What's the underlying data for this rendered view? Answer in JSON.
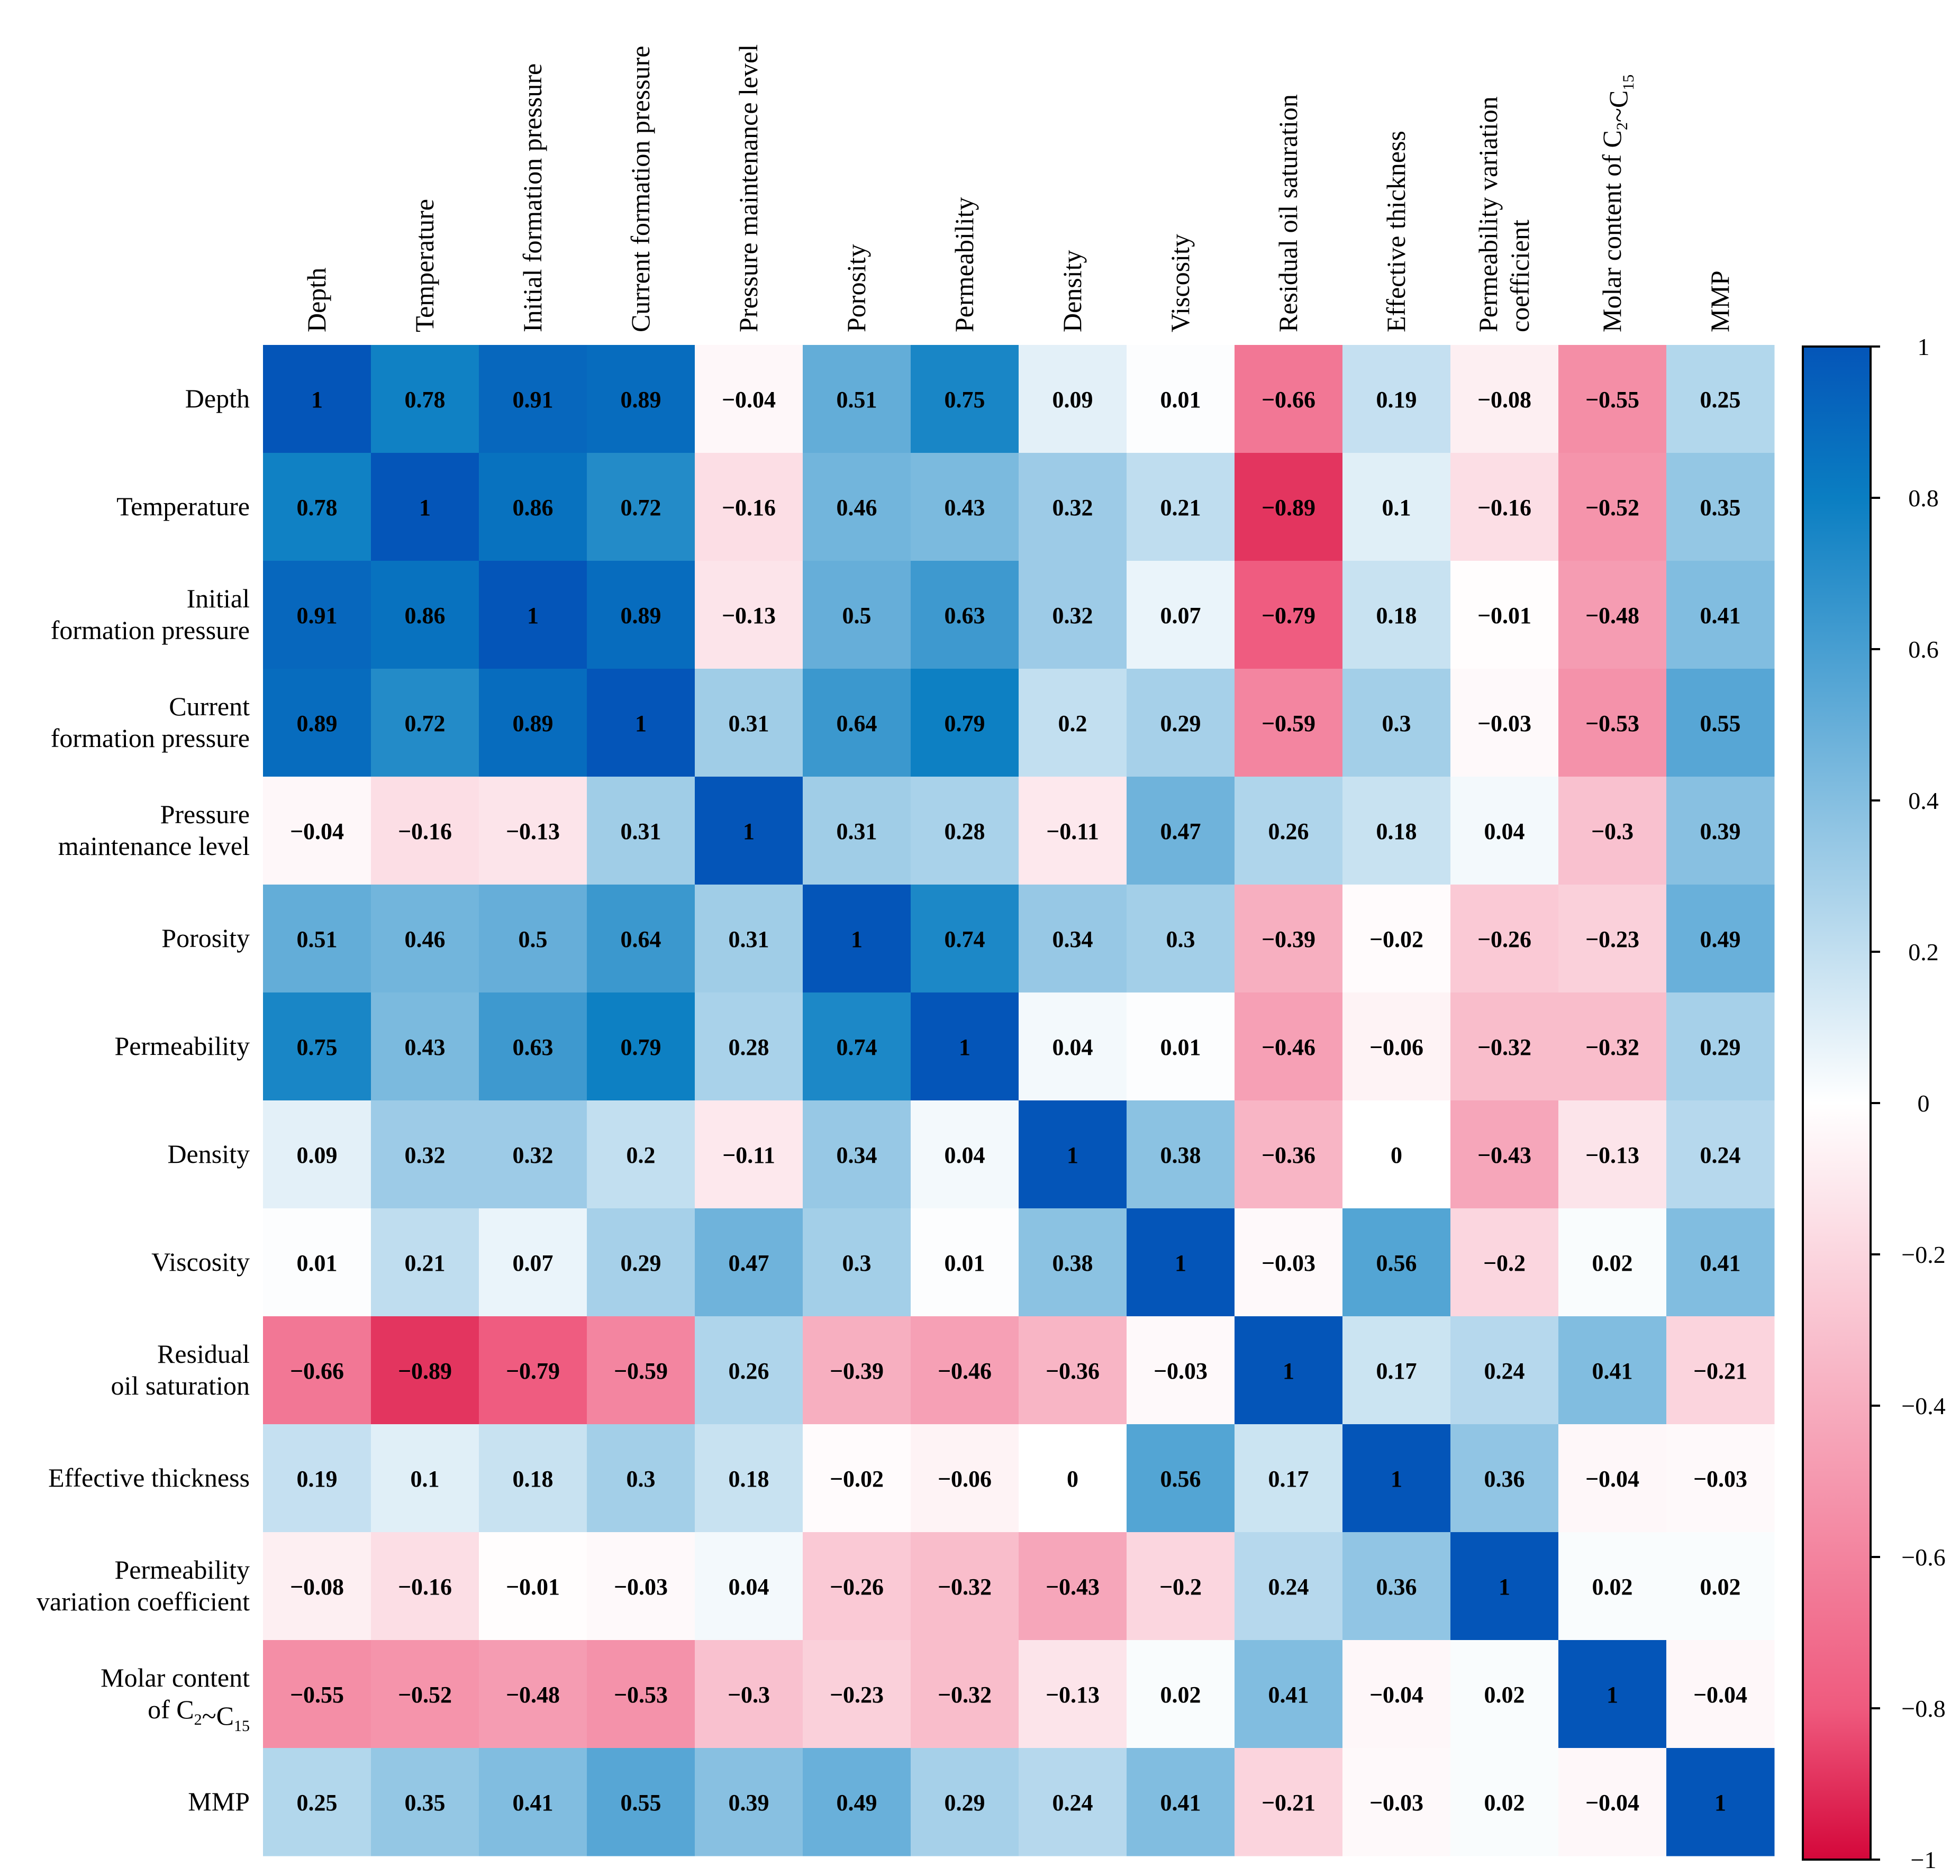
{
  "chart_data": {
    "type": "heatmap",
    "title": "",
    "columns": [
      [
        "Depth"
      ],
      [
        "Temperature"
      ],
      [
        "Initial formation pressure"
      ],
      [
        "Current formation pressure"
      ],
      [
        "Pressure maintenance level"
      ],
      [
        "Porosity"
      ],
      [
        "Permeability"
      ],
      [
        "Density"
      ],
      [
        "Viscosity"
      ],
      [
        "Residual oil saturation"
      ],
      [
        "Effective thickness"
      ],
      [
        "Permeability variation",
        "coefficient"
      ],
      [
        "Molar content of C₂~C₁₅"
      ],
      [
        "MMP"
      ]
    ],
    "rows": [
      [
        "Depth"
      ],
      [
        "Temperature"
      ],
      [
        "Initial",
        "formation pressure"
      ],
      [
        "Current",
        "formation pressure"
      ],
      [
        "Pressure",
        "maintenance level"
      ],
      [
        "Porosity"
      ],
      [
        "Permeability"
      ],
      [
        "Density"
      ],
      [
        "Viscosity"
      ],
      [
        "Residual",
        "oil saturation"
      ],
      [
        "Effective thickness"
      ],
      [
        "Permeability",
        "variation coefficient"
      ],
      [
        "Molar content",
        "of C₂~C₁₅"
      ],
      [
        "MMP"
      ]
    ],
    "values": [
      [
        1,
        0.78,
        0.91,
        0.89,
        -0.04,
        0.51,
        0.75,
        0.09,
        0.01,
        -0.66,
        0.19,
        -0.08,
        -0.55,
        0.25
      ],
      [
        0.78,
        1,
        0.86,
        0.72,
        -0.16,
        0.46,
        0.43,
        0.32,
        0.21,
        -0.89,
        0.1,
        -0.16,
        -0.52,
        0.35
      ],
      [
        0.91,
        0.86,
        1,
        0.89,
        -0.13,
        0.5,
        0.63,
        0.32,
        0.07,
        -0.79,
        0.18,
        -0.01,
        -0.48,
        0.41
      ],
      [
        0.89,
        0.72,
        0.89,
        1,
        0.31,
        0.64,
        0.79,
        0.2,
        0.29,
        -0.59,
        0.3,
        -0.03,
        -0.53,
        0.55
      ],
      [
        -0.04,
        -0.16,
        -0.13,
        0.31,
        1,
        0.31,
        0.28,
        -0.11,
        0.47,
        0.26,
        0.18,
        0.04,
        -0.3,
        0.39
      ],
      [
        0.51,
        0.46,
        0.5,
        0.64,
        0.31,
        1,
        0.74,
        0.34,
        0.3,
        -0.39,
        -0.02,
        -0.26,
        -0.23,
        0.49
      ],
      [
        0.75,
        0.43,
        0.63,
        0.79,
        0.28,
        0.74,
        1,
        0.04,
        0.01,
        -0.46,
        -0.06,
        -0.32,
        -0.32,
        0.29
      ],
      [
        0.09,
        0.32,
        0.32,
        0.2,
        -0.11,
        0.34,
        0.04,
        1,
        0.38,
        -0.36,
        0,
        -0.43,
        -0.13,
        0.24
      ],
      [
        0.01,
        0.21,
        0.07,
        0.29,
        0.47,
        0.3,
        0.01,
        0.38,
        1,
        -0.03,
        0.56,
        -0.2,
        0.02,
        0.41
      ],
      [
        -0.66,
        -0.89,
        -0.79,
        -0.59,
        0.26,
        -0.39,
        -0.46,
        -0.36,
        -0.03,
        1,
        0.17,
        0.24,
        0.41,
        -0.21
      ],
      [
        0.19,
        0.1,
        0.18,
        0.3,
        0.18,
        -0.02,
        -0.06,
        0,
        0.56,
        0.17,
        1,
        0.36,
        -0.04,
        -0.03
      ],
      [
        -0.08,
        -0.16,
        -0.01,
        -0.03,
        0.04,
        -0.26,
        -0.32,
        -0.43,
        -0.2,
        0.24,
        0.36,
        1,
        0.02,
        0.02
      ],
      [
        -0.55,
        -0.52,
        -0.48,
        -0.53,
        -0.3,
        -0.23,
        -0.32,
        -0.13,
        0.02,
        0.41,
        -0.04,
        0.02,
        1,
        -0.04
      ],
      [
        0.25,
        0.35,
        0.41,
        0.55,
        0.39,
        0.49,
        0.29,
        0.24,
        0.41,
        -0.21,
        -0.03,
        0.02,
        -0.04,
        1
      ]
    ],
    "value_range": [
      -1,
      1
    ],
    "colorbar": {
      "ticks": [
        1,
        0.8,
        0.6,
        0.4,
        0.2,
        0,
        -0.2,
        -0.4,
        -0.6,
        -0.8,
        -1
      ],
      "tick_labels": [
        "1",
        "0.8",
        "0.6",
        "0.4",
        "0.2",
        "0",
        "−0.2",
        "−0.4",
        "−0.6",
        "−0.8",
        "−1"
      ],
      "placement": "right"
    },
    "colors": {
      "positive_mid": "#0a7ec2",
      "positive_max": "#0455b8",
      "zero": "#ffffff",
      "negative_mid": "#ef5a7e",
      "negative_max": "#d4073a"
    },
    "grid": false
  }
}
